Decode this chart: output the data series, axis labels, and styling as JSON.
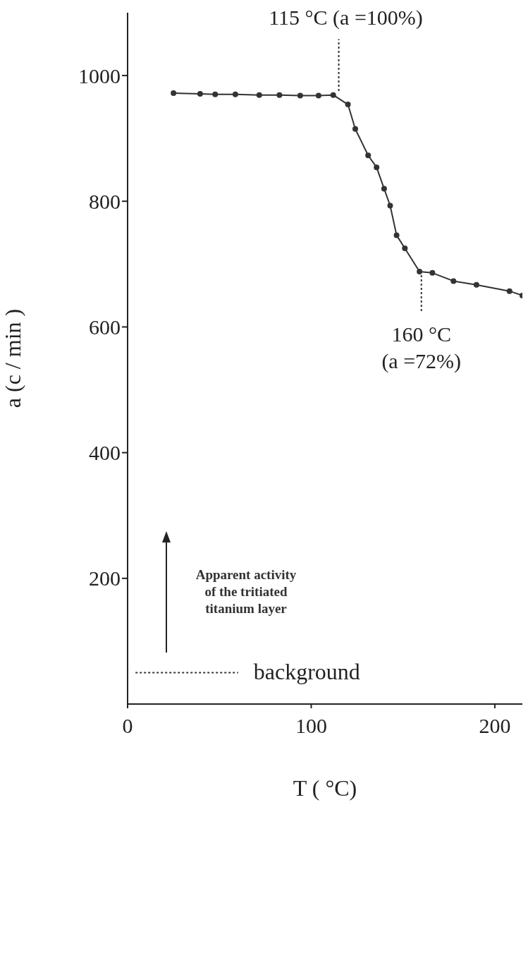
{
  "chart_data": {
    "type": "line",
    "xlabel": "T ( °C)",
    "ylabel": "a (c / min )",
    "x": [
      25,
      39.5,
      47.7,
      58.7,
      71.7,
      82.7,
      94,
      104,
      112,
      120,
      124,
      131,
      135.6,
      139.7,
      143,
      146.5,
      151,
      159,
      166,
      177.5,
      190,
      208,
      215
    ],
    "series": [
      {
        "color": "#333333",
        "values": [
          972,
          971,
          970,
          970,
          969,
          969,
          968,
          968,
          969,
          954,
          915,
          873,
          854,
          820,
          793,
          746,
          725,
          688,
          686,
          673,
          667,
          657,
          650
        ]
      }
    ],
    "xlim": [
      0,
      215
    ],
    "ylim": [
      0,
      1100
    ],
    "xticks": [
      0,
      100,
      200
    ],
    "yticks": [
      200,
      400,
      600,
      800,
      1000
    ],
    "marker": "circle",
    "line_style": "solid",
    "ref_lines": [
      {
        "axis": "y",
        "value": 50,
        "label": "background",
        "line_style": "dotted"
      }
    ],
    "annotations": [
      {
        "text": "115 °C (a =100%)",
        "x": 115,
        "y": 970
      },
      {
        "text": "160 °C (a =72%)",
        "x": 160,
        "y": 688
      },
      "Apparent activity of the tritiated titanium layer"
    ]
  }
}
